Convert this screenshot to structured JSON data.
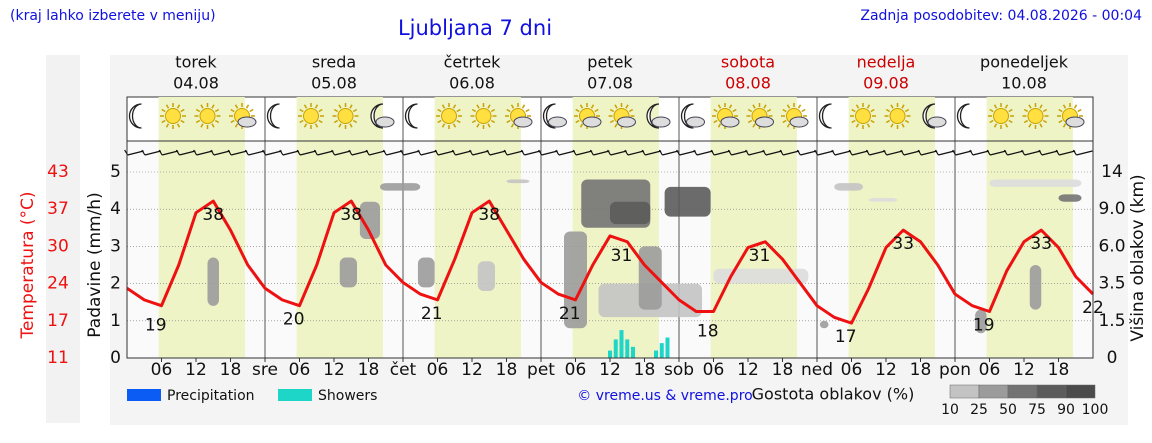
{
  "chart_data": {
    "type": "line",
    "title": "Ljubljana 7 dni",
    "note": "(kraj lahko izberete v meniju)",
    "updated": "Zadnja posodobitev: 04.08.2026 - 00:04",
    "credit": "© vreme.us & vreme.pro",
    "days": [
      {
        "name": "torek",
        "date": "04.08",
        "weekend": false
      },
      {
        "name": "sreda",
        "date": "05.08",
        "weekend": false
      },
      {
        "name": "četrtek",
        "date": "06.08",
        "weekend": false
      },
      {
        "name": "petek",
        "date": "07.08",
        "weekend": false
      },
      {
        "name": "sobota",
        "date": "08.08",
        "weekend": true
      },
      {
        "name": "nedelja",
        "date": "09.08",
        "weekend": true
      },
      {
        "name": "ponedeljek",
        "date": "10.08",
        "weekend": false
      }
    ],
    "xlim": [
      0,
      168
    ],
    "xticks": [
      {
        "value": 6,
        "label": "06"
      },
      12,
      18,
      {
        "value": 24,
        "label": "sre"
      },
      {
        "value": 30,
        "label": "06"
      },
      {
        "value": 36,
        "label": "12"
      },
      {
        "value": 42,
        "label": "18"
      },
      {
        "value": 48,
        "label": "čet"
      },
      {
        "value": 54,
        "label": "06"
      },
      {
        "value": 60,
        "label": "12"
      },
      {
        "value": 66,
        "label": "18"
      },
      {
        "value": 72,
        "label": "pet"
      },
      {
        "value": 78,
        "label": "06"
      },
      {
        "value": 84,
        "label": "12"
      },
      {
        "value": 90,
        "label": "18"
      },
      {
        "value": 96,
        "label": "sob"
      },
      {
        "value": 102,
        "label": "06"
      },
      {
        "value": 108,
        "label": "12"
      },
      {
        "value": 114,
        "label": "18"
      },
      {
        "value": 120,
        "label": "ned"
      },
      {
        "value": 126,
        "label": "06"
      },
      {
        "value": 132,
        "label": "12"
      },
      {
        "value": 138,
        "label": "18"
      },
      {
        "value": 144,
        "label": "pon"
      },
      {
        "value": 150,
        "label": "06"
      },
      {
        "value": 156,
        "label": "12"
      },
      {
        "value": 162,
        "label": "18"
      }
    ],
    "daylight": [
      5.5,
      20.5
    ],
    "ylabel": "Padavine (mm/h)",
    "ylim": [
      0,
      5
    ],
    "yticks": [
      0,
      1,
      2,
      3,
      4,
      5
    ],
    "temp_label": "Temperatura (°C)",
    "templim": [
      11,
      43
    ],
    "tempticks": [
      11,
      {
        "value": 17.4,
        "label": "17"
      },
      {
        "value": 23.8,
        "label": "24"
      },
      {
        "value": 30.2,
        "label": "30"
      },
      {
        "value": 36.6,
        "label": "37"
      },
      43
    ],
    "y2label": "Višina oblakov (km)",
    "y2ticks": [
      0,
      1.5,
      3.5,
      {
        "value": 6,
        "label": "6.0"
      },
      {
        "value": 9,
        "label": "9.0"
      },
      14
    ],
    "temperature": {
      "color": "#ee1111",
      "x": [
        0,
        3,
        6,
        9,
        12,
        15,
        18,
        21,
        24,
        27,
        30,
        33,
        36,
        39,
        42,
        45,
        48,
        51,
        54,
        57,
        60,
        63,
        66,
        69,
        72,
        75,
        78,
        81,
        84,
        87,
        90,
        93,
        96,
        99,
        102,
        105,
        108,
        111,
        114,
        117,
        120,
        123,
        126,
        129,
        132,
        135,
        138,
        141,
        144,
        147,
        150,
        153,
        156,
        159,
        162,
        165,
        168
      ],
      "values": [
        23,
        21,
        20,
        27,
        36,
        38,
        33,
        27,
        23,
        21,
        20,
        27,
        36,
        38,
        33,
        27,
        24,
        22,
        21,
        28,
        36,
        38,
        33,
        28,
        24,
        22,
        21,
        27,
        32,
        31,
        27,
        24,
        21,
        19,
        19,
        25,
        30,
        31,
        28,
        24,
        20,
        18,
        17,
        23,
        30,
        33,
        31,
        27,
        22,
        20,
        19,
        26,
        31,
        33,
        30,
        25,
        22
      ]
    },
    "temp_labels": {
      "x": [
        5,
        15,
        29,
        39,
        53,
        63,
        77,
        86,
        101,
        110,
        125,
        135,
        149,
        159,
        168
      ],
      "values": [
        19,
        38,
        20,
        38,
        21,
        38,
        21,
        31,
        18,
        31,
        17,
        33,
        19,
        33,
        22
      ]
    },
    "series": [
      {
        "name": "Precipitation",
        "color": "#0a5cf5",
        "x": [],
        "values": []
      },
      {
        "name": "Showers",
        "color": "#1ed6c8",
        "x": [
          84,
          85,
          86,
          87,
          88,
          92,
          93,
          94
        ],
        "values": [
          0.2,
          0.5,
          0.75,
          0.5,
          0.3,
          0.2,
          0.4,
          0.55
        ]
      }
    ],
    "cloud_legend": {
      "title": "Gostota oblakov (%)",
      "levels": [
        10,
        25,
        50,
        75,
        90,
        100
      ]
    },
    "clouds": [
      {
        "h": [
          14,
          16
        ],
        "km": [
          2.3,
          5.25
        ],
        "density": 50
      },
      {
        "h": [
          37,
          40
        ],
        "km": [
          3.3,
          5.25
        ],
        "density": 50
      },
      {
        "h": [
          40.5,
          44
        ],
        "km": [
          6.6,
          10
        ],
        "density": 50
      },
      {
        "h": [
          44,
          51
        ],
        "km": [
          11.5,
          12.5
        ],
        "density": 50
      },
      {
        "h": [
          50.6,
          53.5
        ],
        "km": [
          3.3,
          5.25
        ],
        "density": 50
      },
      {
        "h": [
          61,
          64
        ],
        "km": [
          3.1,
          5
        ],
        "density": 25
      },
      {
        "h": [
          66,
          70
        ],
        "km": [
          12.5,
          13
        ],
        "density": 25
      },
      {
        "h": [
          82,
          100
        ],
        "km": [
          1.7,
          3.5
        ],
        "density": 25
      },
      {
        "h": [
          76,
          80
        ],
        "km": [
          1.2,
          7.2
        ],
        "density": 50
      },
      {
        "h": [
          89,
          93
        ],
        "km": [
          2.1,
          6
        ],
        "density": 50
      },
      {
        "h": [
          79,
          91
        ],
        "km": [
          7.5,
          13
        ],
        "density": 75
      },
      {
        "h": [
          84,
          91
        ],
        "km": [
          7.8,
          10
        ],
        "density": 90
      },
      {
        "h": [
          93.5,
          101.5
        ],
        "km": [
          8.4,
          12
        ],
        "density": 90
      },
      {
        "h": [
          102,
          118.5
        ],
        "km": [
          3.5,
          4.5
        ],
        "density": 10
      },
      {
        "h": [
          120.5,
          122
        ],
        "km": [
          1.2,
          1.5
        ],
        "density": 50
      },
      {
        "h": [
          123,
          128
        ],
        "km": [
          11.5,
          12.5
        ],
        "density": 25
      },
      {
        "h": [
          129,
          134
        ],
        "km": [
          10,
          10.5
        ],
        "density": 10
      },
      {
        "h": [
          150,
          166
        ],
        "km": [
          12,
          13
        ],
        "density": 10
      },
      {
        "h": [
          147.5,
          149.5
        ],
        "km": [
          1,
          2.1
        ],
        "density": 50
      },
      {
        "h": [
          157,
          159
        ],
        "km": [
          2.1,
          4.75
        ],
        "density": 50
      },
      {
        "h": [
          162,
          166
        ],
        "km": [
          10,
          11
        ],
        "density": 75
      }
    ]
  }
}
